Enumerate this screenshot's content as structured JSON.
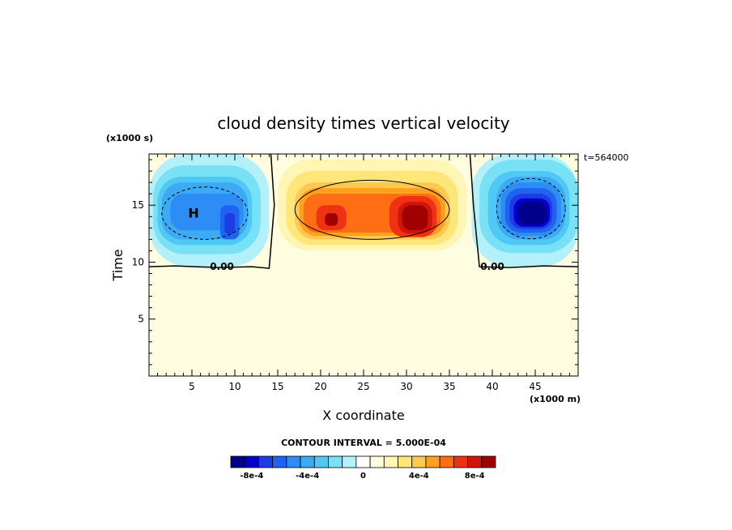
{
  "chart_data": {
    "type": "heatmap",
    "title": "cloud density times vertical velocity",
    "xlabel": "X coordinate",
    "ylabel": "Time",
    "x_unit": "(x1000 m)",
    "y_unit": "(x1000 s)",
    "time_stamp": "t=564000",
    "xlim": [
      0,
      50
    ],
    "ylim": [
      0,
      19.5
    ],
    "x_ticks": [
      5,
      10,
      15,
      20,
      25,
      30,
      35,
      40,
      45
    ],
    "y_ticks": [
      5,
      10,
      15
    ],
    "x_tick_labels": [
      "5",
      "10",
      "15",
      "20",
      "25",
      "30",
      "35",
      "40",
      "45"
    ],
    "y_tick_labels": [
      "5",
      "10",
      "15"
    ],
    "contour_interval_label": "CONTOUR INTERVAL = 5.000E-04",
    "contour_line_labels": [
      "0.00",
      "0.00"
    ],
    "extrema_labels": [
      "H"
    ],
    "colorbar": {
      "levels": [
        -0.0009,
        -0.0008,
        -0.0007,
        -0.0006,
        -0.0005,
        -0.0004,
        -0.0003,
        -0.0002,
        -0.0001,
        0,
        0.0001,
        0.0002,
        0.0003,
        0.0004,
        0.0005,
        0.0006,
        0.0007,
        0.0008,
        0.0009
      ],
      "colors": [
        "#00008b",
        "#0000cd",
        "#1e3ce6",
        "#1e64f0",
        "#2d8cf5",
        "#3caaf5",
        "#50c8f5",
        "#78e1f5",
        "#b4f0fa",
        "#ffffff",
        "#fffde0",
        "#fff5b4",
        "#ffe678",
        "#ffc850",
        "#ffa01e",
        "#ff6e14",
        "#f03214",
        "#d2140a",
        "#a00000"
      ],
      "tick_labels": [
        "-8e-4",
        "-4e-4",
        "0",
        "4e-4",
        "8e-4"
      ],
      "tick_values": [
        -0.0008,
        -0.0004,
        0,
        0.0004,
        0.0008
      ]
    },
    "cells": [
      {
        "x0": 0,
        "x1": 14,
        "y0": 9.6,
        "y1": 19.5,
        "value": -0.0001
      },
      {
        "x0": 0.5,
        "x1": 13,
        "y0": 10.7,
        "y1": 18.5,
        "value": -0.0002
      },
      {
        "x0": 1,
        "x1": 12,
        "y0": 11.5,
        "y1": 17.5,
        "value": -0.0003
      },
      {
        "x0": 1.5,
        "x1": 11.5,
        "y0": 12.0,
        "y1": 17.0,
        "value": -0.0004
      },
      {
        "x0": 2.5,
        "x1": 11,
        "y0": 12.8,
        "y1": 16.0,
        "value": -0.0005
      },
      {
        "x0": 8.3,
        "x1": 10.5,
        "y0": 12.0,
        "y1": 15.0,
        "value": -0.0006
      },
      {
        "x0": 8.8,
        "x1": 10,
        "y0": 12.5,
        "y1": 14.3,
        "value": -0.0007
      },
      {
        "x0": 14.2,
        "x1": 37.5,
        "y0": 10.0,
        "y1": 19.5,
        "value": 0.0001
      },
      {
        "x0": 15,
        "x1": 37,
        "y0": 11.0,
        "y1": 19.0,
        "value": 0.0002
      },
      {
        "x0": 16,
        "x1": 36,
        "y0": 11.5,
        "y1": 18.0,
        "value": 0.0003
      },
      {
        "x0": 17,
        "x1": 35,
        "y0": 12.0,
        "y1": 17.0,
        "value": 0.0004
      },
      {
        "x0": 17.5,
        "x1": 34.5,
        "y0": 12.3,
        "y1": 16.5,
        "value": 0.0005
      },
      {
        "x0": 18,
        "x1": 34,
        "y0": 12.6,
        "y1": 16.0,
        "value": 0.0006
      },
      {
        "x0": 19.5,
        "x1": 23,
        "y0": 12.8,
        "y1": 15.0,
        "value": 0.0007
      },
      {
        "x0": 28,
        "x1": 33.5,
        "y0": 12.2,
        "y1": 15.8,
        "value": 0.0007
      },
      {
        "x0": 20.5,
        "x1": 22,
        "y0": 13.2,
        "y1": 14.3,
        "value": 0.0009
      },
      {
        "x0": 29,
        "x1": 33,
        "y0": 12.5,
        "y1": 15.3,
        "value": 0.0008
      },
      {
        "x0": 29.5,
        "x1": 32.5,
        "y0": 12.8,
        "y1": 15.0,
        "value": 0.0009
      },
      {
        "x0": 37.6,
        "x1": 50,
        "y0": 9.6,
        "y1": 19.5,
        "value": -0.0001
      },
      {
        "x0": 38.5,
        "x1": 50,
        "y0": 10.8,
        "y1": 19.0,
        "value": -0.0002
      },
      {
        "x0": 39.5,
        "x1": 49,
        "y0": 11.5,
        "y1": 18.0,
        "value": -0.0003
      },
      {
        "x0": 40.5,
        "x1": 48.5,
        "y0": 12.0,
        "y1": 17.5,
        "value": -0.0004
      },
      {
        "x0": 41,
        "x1": 48,
        "y0": 12.3,
        "y1": 17.0,
        "value": -0.0005
      },
      {
        "x0": 41.5,
        "x1": 47.5,
        "y0": 12.6,
        "y1": 16.5,
        "value": -0.0006
      },
      {
        "x0": 42,
        "x1": 47,
        "y0": 12.9,
        "y1": 16.0,
        "value": -0.0007
      },
      {
        "x0": 42.5,
        "x1": 46.7,
        "y0": 13.1,
        "y1": 15.6,
        "value": -0.0008
      },
      {
        "x0": 43,
        "x1": 46.3,
        "y0": 13.3,
        "y1": 15.3,
        "value": -0.0009
      }
    ]
  }
}
